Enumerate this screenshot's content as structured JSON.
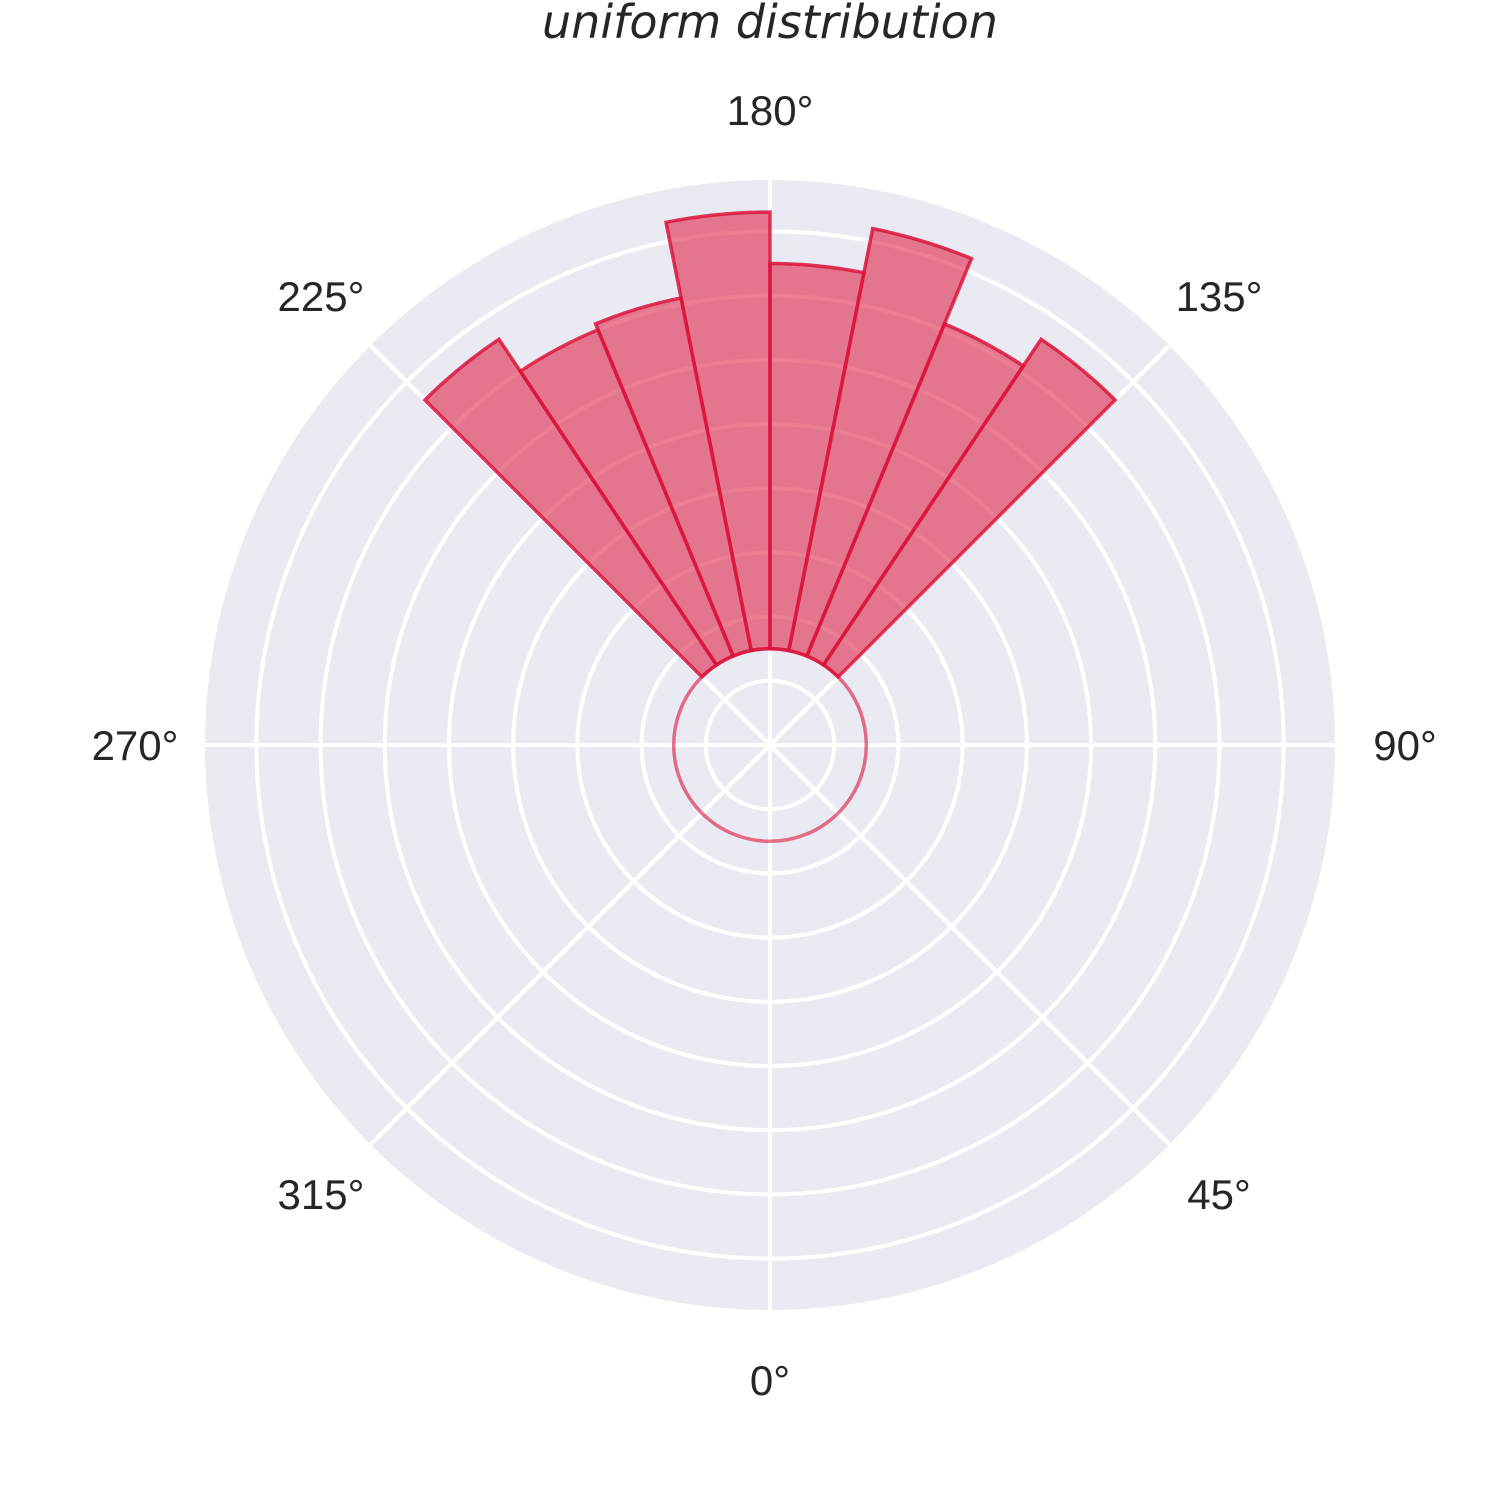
{
  "chart_data": {
    "type": "polar-bar",
    "title": "uniform distribution",
    "angle_ticks": [
      {
        "deg": 0,
        "label": "0°"
      },
      {
        "deg": 45,
        "label": "45°"
      },
      {
        "deg": 90,
        "label": "90°"
      },
      {
        "deg": 135,
        "label": "135°"
      },
      {
        "deg": 180,
        "label": "180°"
      },
      {
        "deg": 225,
        "label": "225°"
      },
      {
        "deg": 270,
        "label": "270°"
      },
      {
        "deg": 315,
        "label": "315°"
      }
    ],
    "zero_location": "bottom",
    "direction": "counterclockwise",
    "radial_max": 8.8,
    "radial_gridlines": [
      1,
      2,
      3,
      4,
      5,
      6,
      7,
      8
    ],
    "bottom": 1.5,
    "bars": [
      {
        "start_deg": 135,
        "end_deg": 146.25,
        "value": 6.1
      },
      {
        "start_deg": 146.25,
        "end_deg": 157.5,
        "value": 5.6
      },
      {
        "start_deg": 157.5,
        "end_deg": 168.75,
        "value": 6.7
      },
      {
        "start_deg": 168.75,
        "end_deg": 180,
        "value": 6.0
      },
      {
        "start_deg": 180,
        "end_deg": 191.25,
        "value": 6.8
      },
      {
        "start_deg": 191.25,
        "end_deg": 202.5,
        "value": 5.6
      },
      {
        "start_deg": 202.5,
        "end_deg": 213.75,
        "value": 5.5
      },
      {
        "start_deg": 213.75,
        "end_deg": 225,
        "value": 6.1
      }
    ],
    "colors": {
      "bar_fill": "#dc143c",
      "bar_edge": "#dc143c",
      "axes_background": "#eaeaf2",
      "grid": "#ffffff",
      "text": "#262626"
    },
    "grid": true
  }
}
